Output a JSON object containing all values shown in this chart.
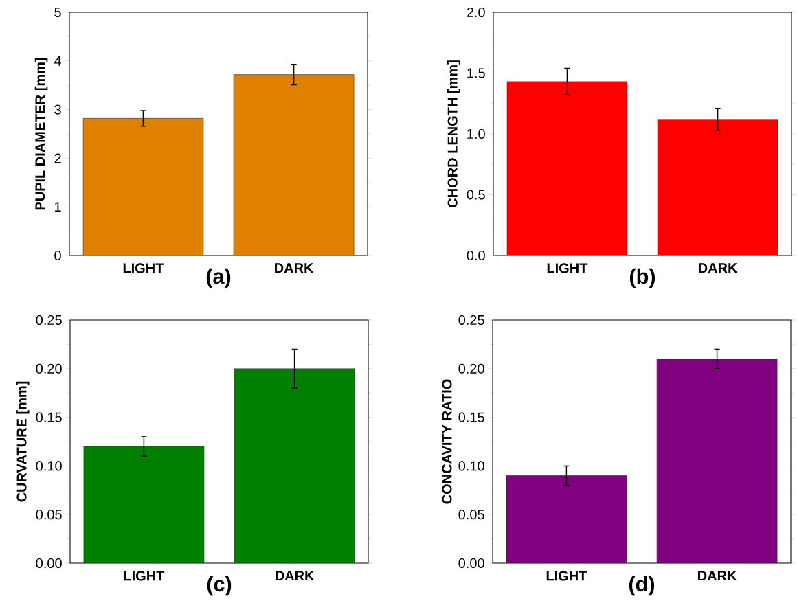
{
  "chart_data": [
    {
      "type": "bar",
      "categories": [
        "LIGHT",
        "DARK"
      ],
      "values": [
        2.82,
        3.72
      ],
      "errors": [
        0.16,
        0.21
      ],
      "color": "#e08000",
      "ylim": [
        0,
        5
      ],
      "yticks": [
        0,
        1,
        2,
        3,
        4,
        5
      ],
      "ylabel": "PUPIL DIAMETER [mm]",
      "xlabel": "(a)"
    },
    {
      "type": "bar",
      "categories": [
        "LIGHT",
        "DARK"
      ],
      "values": [
        1.43,
        1.12
      ],
      "errors": [
        0.11,
        0.09
      ],
      "color": "#ff0000",
      "ylim": [
        0,
        2
      ],
      "yticks": [
        {
          "value": 0,
          "label": "0.0"
        },
        {
          "value": 0.5,
          "label": "0.5"
        },
        {
          "value": 1,
          "label": "1.0"
        },
        {
          "value": 1.5,
          "label": "1.5"
        },
        {
          "value": 2,
          "label": "2.0"
        }
      ],
      "ylabel": "CHORD LENGTH [mm]",
      "xlabel": "(b)"
    },
    {
      "type": "bar",
      "categories": [
        "LIGHT",
        "DARK"
      ],
      "values": [
        0.12,
        0.2
      ],
      "errors": [
        0.01,
        0.02
      ],
      "color": "#008000",
      "ylim": [
        0,
        0.25
      ],
      "yticks": [
        {
          "value": 0,
          "label": "0.00"
        },
        {
          "value": 0.05,
          "label": "0.05"
        },
        {
          "value": 0.1,
          "label": "0.10"
        },
        {
          "value": 0.15,
          "label": "0.15"
        },
        {
          "value": 0.2,
          "label": "0.20"
        },
        {
          "value": 0.25,
          "label": "0.25"
        }
      ],
      "ylabel": "CURVATURE [mm]",
      "xlabel": "(c)"
    },
    {
      "type": "bar",
      "categories": [
        "LIGHT",
        "DARK"
      ],
      "values": [
        0.09,
        0.21
      ],
      "errors": [
        0.01,
        0.01
      ],
      "color": "#800080",
      "ylim": [
        0,
        0.25
      ],
      "yticks": [
        {
          "value": 0,
          "label": "0.00"
        },
        {
          "value": 0.05,
          "label": "0.05"
        },
        {
          "value": 0.1,
          "label": "0.10"
        },
        {
          "value": 0.15,
          "label": "0.15"
        },
        {
          "value": 0.2,
          "label": "0.20"
        },
        {
          "value": 0.25,
          "label": "0.25"
        }
      ],
      "ylabel": "CONCAVITY RATIO",
      "xlabel": "(d)"
    }
  ]
}
